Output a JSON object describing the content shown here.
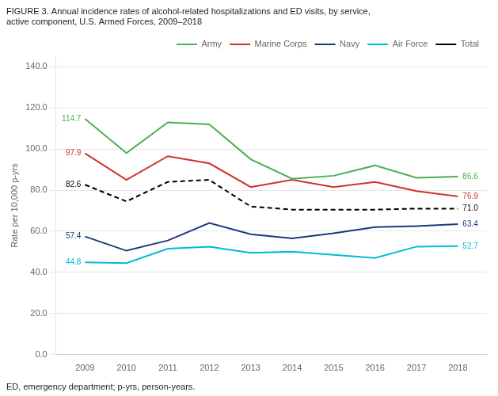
{
  "chart_data": {
    "type": "line",
    "title": "FIGURE 3. Annual incidence rates of alcohol-related hospitalizations and ED visits, by service,\nactive component, U.S. Armed Forces, 2009–2018",
    "footnote": "ED, emergency department; p-yrs, person-years.",
    "ylabel": "Rate per 10,000 p-yrs",
    "x": [
      2009,
      2010,
      2011,
      2012,
      2013,
      2014,
      2015,
      2016,
      2017,
      2018
    ],
    "series": [
      {
        "name": "Army",
        "color": "#4CAF50",
        "line_style": "solid",
        "values": [
          114.7,
          98.0,
          113.0,
          112.0,
          95.0,
          85.5,
          87.0,
          92.0,
          86.0,
          86.6
        ]
      },
      {
        "name": "Marine Corps",
        "color": "#D32F2F",
        "line_style": "solid",
        "values": [
          97.9,
          85.0,
          96.5,
          93.0,
          81.5,
          85.0,
          81.5,
          84.0,
          79.5,
          76.9
        ]
      },
      {
        "name": "Navy",
        "color": "#1A3A7A",
        "line_style": "solid",
        "values": [
          57.4,
          50.5,
          55.5,
          64.0,
          58.5,
          56.5,
          59.0,
          62.0,
          62.5,
          63.4
        ]
      },
      {
        "name": "Air Force",
        "color": "#00BCD4",
        "line_style": "solid",
        "values": [
          44.8,
          44.5,
          51.5,
          52.5,
          49.5,
          50.0,
          48.5,
          47.0,
          52.5,
          52.7
        ]
      },
      {
        "name": "Total",
        "color": "#000000",
        "line_style": "dashed",
        "values": [
          82.6,
          74.5,
          84.0,
          85.0,
          72.0,
          70.5,
          70.5,
          70.5,
          71.0,
          71.0
        ]
      }
    ],
    "xlim": [
      2008.3,
      2018.7
    ],
    "xticks": [
      2009,
      2010,
      2011,
      2012,
      2013,
      2014,
      2015,
      2016,
      2017,
      2018
    ],
    "ylim": [
      0,
      145
    ],
    "yticks": [
      {
        "value": 0,
        "label": "0.0"
      },
      {
        "value": 20,
        "label": "20.0"
      },
      {
        "value": 40,
        "label": "40.0"
      },
      {
        "value": 60,
        "label": "60.0"
      },
      {
        "value": 80,
        "label": "80.0"
      },
      {
        "value": 100,
        "label": "100.0"
      },
      {
        "value": 120,
        "label": "120.0"
      },
      {
        "value": 140,
        "label": "140.0"
      }
    ],
    "grid": true,
    "legend": "upper right",
    "annotations": [
      {
        "text": "114.7",
        "x": 2009,
        "y": 114.7,
        "series": "Army"
      },
      {
        "text": "97.9",
        "x": 2009,
        "y": 97.9,
        "series": "Marine Corps"
      },
      {
        "text": "82.6",
        "x": 2009,
        "y": 82.6,
        "series": "Total"
      },
      {
        "text": "57.4",
        "x": 2009,
        "y": 57.4,
        "series": "Navy"
      },
      {
        "text": "44.8",
        "x": 2009,
        "y": 44.8,
        "series": "Air Force"
      },
      {
        "text": "86.6",
        "x": 2018,
        "y": 86.6,
        "series": "Army"
      },
      {
        "text": "76.9",
        "x": 2018,
        "y": 76.9,
        "series": "Marine Corps"
      },
      {
        "text": "71.0",
        "x": 2018,
        "y": 71.0,
        "series": "Total"
      },
      {
        "text": "63.4",
        "x": 2018,
        "y": 63.4,
        "series": "Navy"
      },
      {
        "text": "52.7",
        "x": 2018,
        "y": 52.7,
        "series": "Air Force"
      }
    ]
  }
}
